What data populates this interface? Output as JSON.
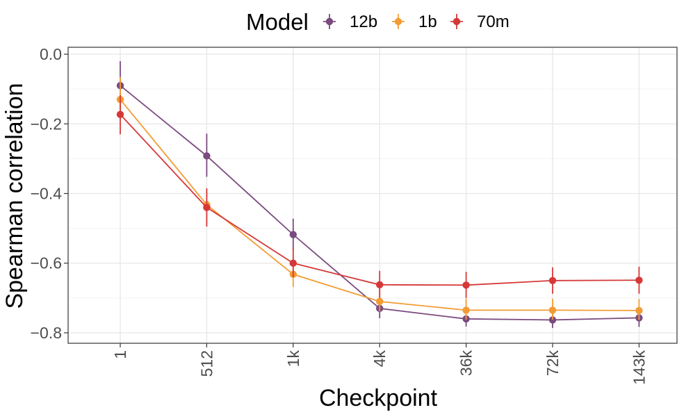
{
  "chart_data": {
    "type": "line",
    "title": "",
    "xlabel": "Checkpoint",
    "ylabel": "Spearman correlation",
    "categories": [
      "1",
      "512",
      "1k",
      "4k",
      "36k",
      "72k",
      "143k"
    ],
    "ylim": [
      -0.83,
      0.02
    ],
    "yticks": [
      0.0,
      -0.2,
      -0.4,
      -0.6,
      -0.8
    ],
    "ytick_labels": [
      "0.0",
      "−0.2",
      "−0.4",
      "−0.6",
      "−0.8"
    ],
    "grid": true,
    "legend": {
      "title": "Model",
      "position": "top-center",
      "entries": [
        "12b",
        "1b",
        "70m"
      ]
    },
    "series": [
      {
        "name": "12b",
        "color": "#7b4a7f",
        "values": [
          -0.09,
          -0.292,
          -0.518,
          -0.73,
          -0.76,
          -0.763,
          -0.757
        ],
        "err_low": [
          -0.155,
          -0.352,
          -0.562,
          -0.758,
          -0.782,
          -0.786,
          -0.783
        ],
        "err_high": [
          -0.02,
          -0.228,
          -0.472,
          -0.705,
          -0.735,
          -0.738,
          -0.73
        ]
      },
      {
        "name": "1b",
        "color": "#f39c34",
        "values": [
          -0.13,
          -0.432,
          -0.632,
          -0.71,
          -0.735,
          -0.735,
          -0.736
        ],
        "err_low": [
          -0.188,
          -0.49,
          -0.668,
          -0.738,
          -0.762,
          -0.762,
          -0.763
        ],
        "err_high": [
          -0.065,
          -0.385,
          -0.59,
          -0.675,
          -0.702,
          -0.702,
          -0.703
        ]
      },
      {
        "name": "70m",
        "color": "#d63838",
        "values": [
          -0.173,
          -0.44,
          -0.6,
          -0.662,
          -0.663,
          -0.65,
          -0.649
        ],
        "err_low": [
          -0.23,
          -0.495,
          -0.64,
          -0.7,
          -0.7,
          -0.688,
          -0.688
        ],
        "err_high": [
          -0.118,
          -0.385,
          -0.555,
          -0.622,
          -0.625,
          -0.612,
          -0.61
        ]
      }
    ]
  }
}
